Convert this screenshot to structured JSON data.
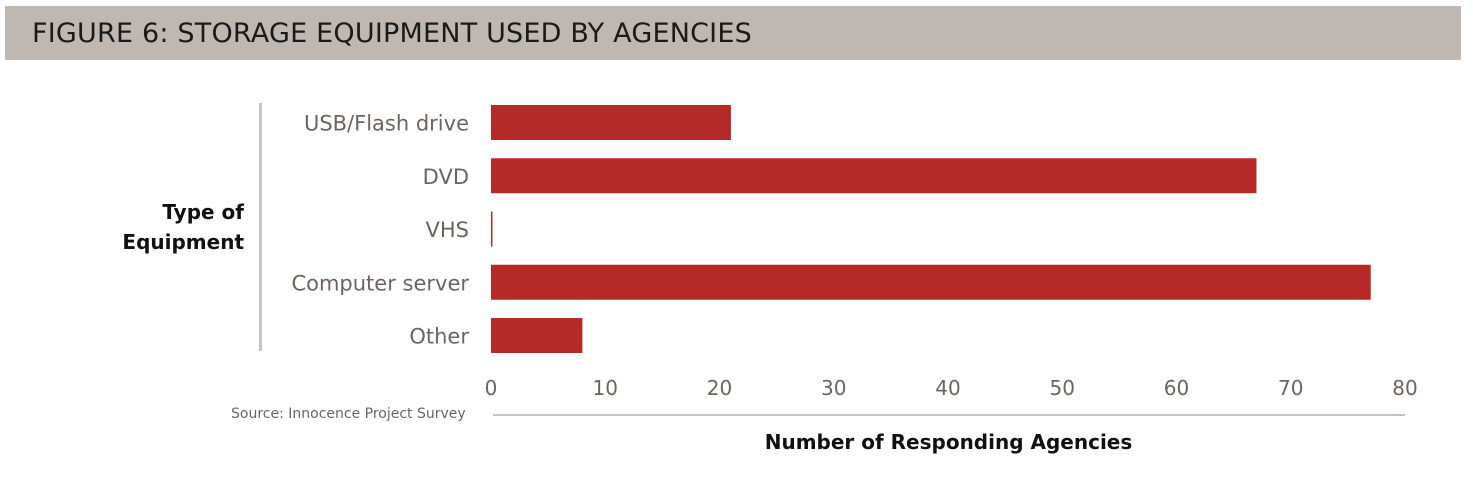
{
  "title": "FIGURE 6: STORAGE EQUIPMENT USED BY AGENCIES",
  "source": "Source: Innocence Project Survey",
  "colors": {
    "bar": "#b52a26",
    "title_band": "#bfb8b2",
    "axis_rule": "#c9c3be",
    "tick_text": "#6b6561"
  },
  "chart_data": {
    "type": "bar",
    "orientation": "horizontal",
    "categories": [
      "USB/Flash drive",
      "DVD",
      "VHS",
      "Computer server",
      "Other"
    ],
    "values": [
      21,
      67,
      0,
      77,
      8
    ],
    "xlabel": "Number of Responding Agencies",
    "ylabel": "Type of Equipment",
    "xlim": [
      0,
      80
    ],
    "xticks": [
      0,
      10,
      20,
      30,
      40,
      50,
      60,
      70,
      80
    ],
    "grid": false
  }
}
